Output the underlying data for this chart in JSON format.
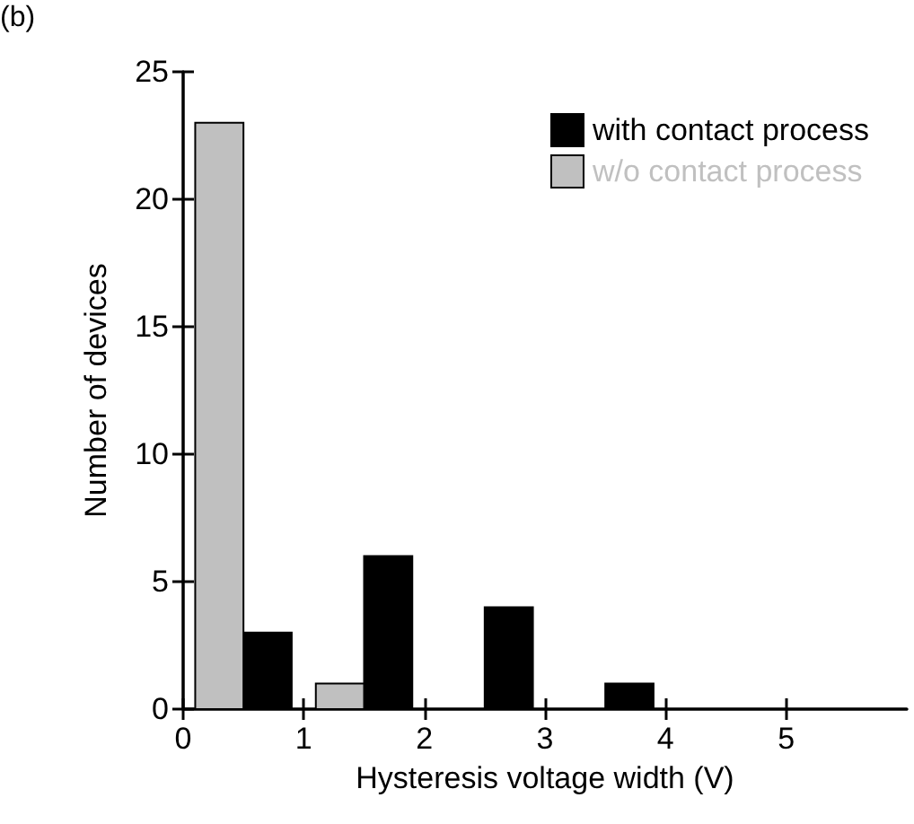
{
  "chart_data": {
    "type": "bar",
    "xlabel": "Hysteresis voltage width (V)",
    "ylabel": "Number of devices",
    "annotations": [
      "(b)"
    ],
    "xlim": [
      0,
      6
    ],
    "xticks": [
      0,
      1,
      2,
      3,
      4,
      5
    ],
    "ylim": [
      0,
      25
    ],
    "yticks": [
      0,
      5,
      10,
      15,
      20,
      25
    ],
    "grid": false,
    "legend": "top right",
    "series": [
      {
        "name": "with contact process",
        "color": "#000000",
        "x": [
          0.7,
          1.7,
          2.7,
          3.7
        ],
        "values": [
          3,
          6,
          4,
          1
        ]
      },
      {
        "name": "w/o contact process",
        "color": "#c0c0c0",
        "x": [
          0.3,
          1.3
        ],
        "values": [
          23,
          1
        ]
      }
    ]
  }
}
